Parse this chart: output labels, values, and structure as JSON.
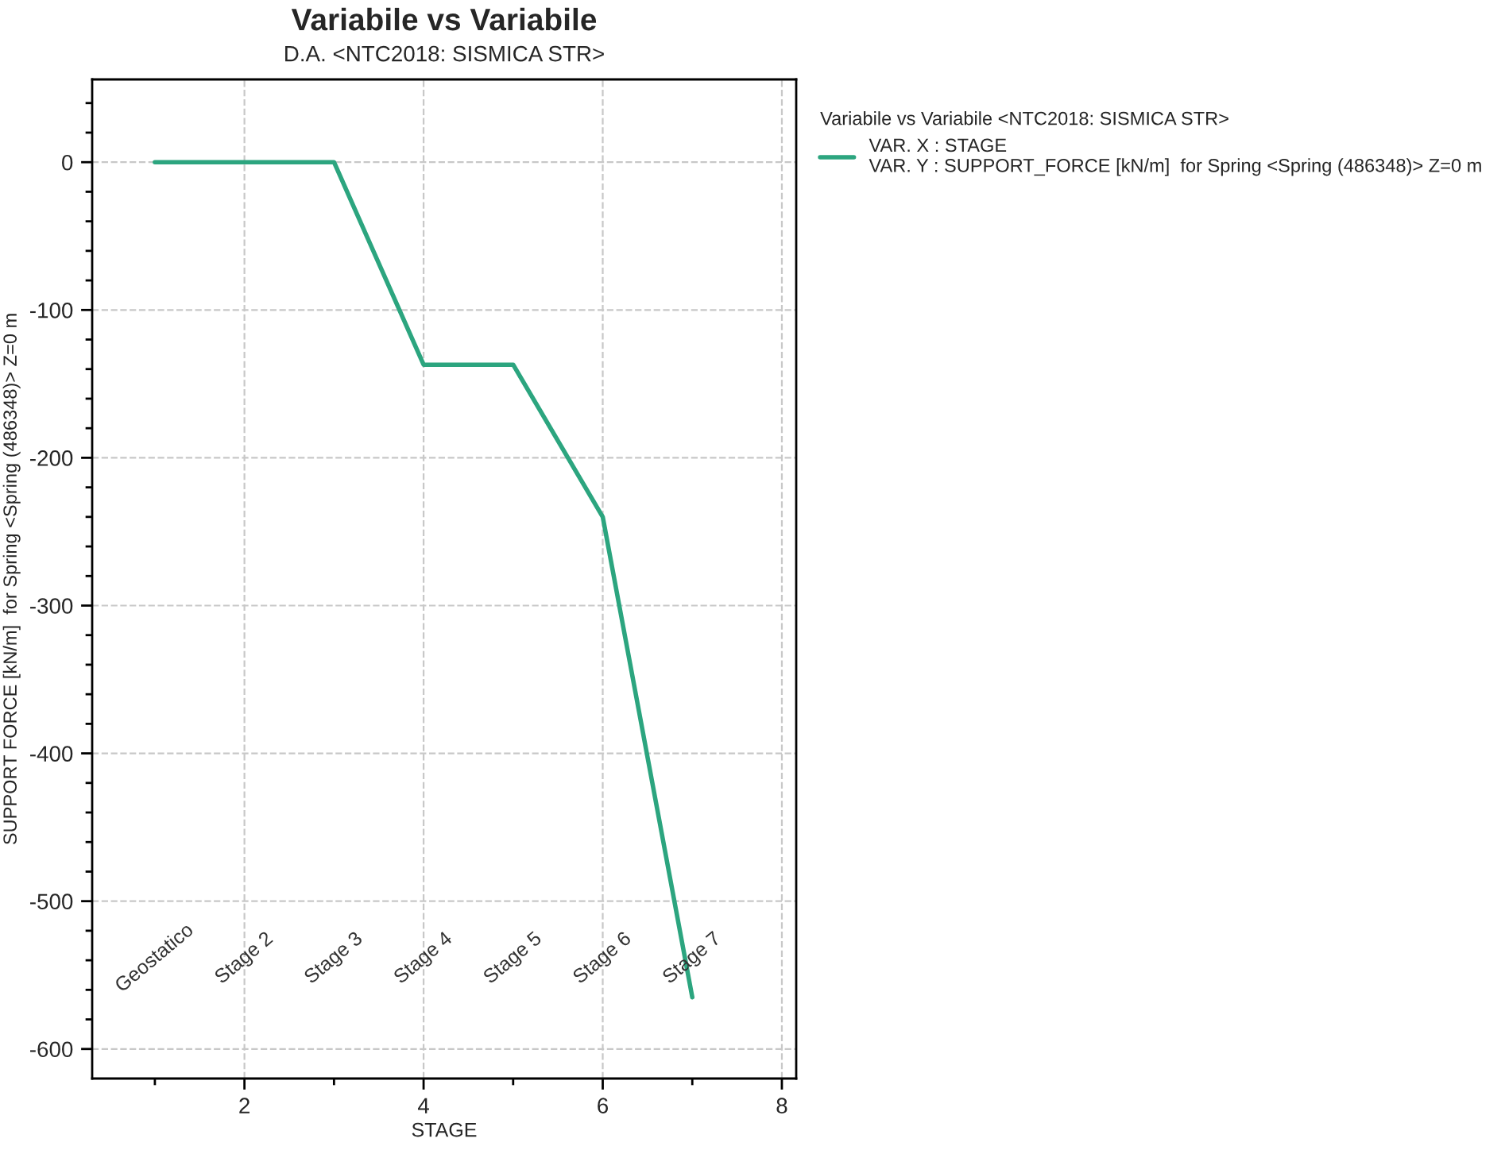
{
  "chart_data": {
    "type": "line",
    "title": "Variabile vs Variabile",
    "subtitle": "D.A. <NTC2018: SISMICA STR>",
    "xlabel": "STAGE",
    "ylabel": "SUPPORT FORCE [kN/m]  for Spring <Spring (486348)> Z=0 m",
    "legend_title": "Variabile vs Variabile <NTC2018: SISMICA STR>",
    "x": [
      1,
      2,
      3,
      4,
      5,
      6,
      7
    ],
    "series": [
      {
        "name": "VAR. X : STAGE\nVAR. Y : SUPPORT_FORCE [kN/m]  for Spring <Spring (486348)> Z=0 m",
        "color": "#2ca57f",
        "values": [
          0,
          0,
          0,
          -137,
          -137,
          -240,
          -565
        ]
      }
    ],
    "annotations": [
      "Geostatico",
      "Stage 2",
      "Stage 3",
      "Stage 4",
      "Stage 5",
      "Stage 6",
      "Stage 7"
    ],
    "xlim": [
      0.3,
      8.16
    ],
    "ylim": [
      -620,
      56
    ],
    "xticks": [
      {
        "value": 1,
        "label": null
      },
      2,
      {
        "value": 3,
        "label": null
      },
      4,
      {
        "value": 5,
        "label": null
      },
      6,
      {
        "value": 7,
        "label": null
      },
      8
    ],
    "yticks": [
      -600,
      {
        "value": -580,
        "label": null
      },
      {
        "value": -560,
        "label": null
      },
      {
        "value": -540,
        "label": null
      },
      {
        "value": -520,
        "label": null
      },
      -500,
      {
        "value": -480,
        "label": null
      },
      {
        "value": -460,
        "label": null
      },
      {
        "value": -440,
        "label": null
      },
      {
        "value": -420,
        "label": null
      },
      -400,
      {
        "value": -380,
        "label": null
      },
      {
        "value": -360,
        "label": null
      },
      {
        "value": -340,
        "label": null
      },
      {
        "value": -320,
        "label": null
      },
      -300,
      {
        "value": -280,
        "label": null
      },
      {
        "value": -260,
        "label": null
      },
      {
        "value": -240,
        "label": null
      },
      {
        "value": -220,
        "label": null
      },
      -200,
      {
        "value": -180,
        "label": null
      },
      {
        "value": -160,
        "label": null
      },
      {
        "value": -140,
        "label": null
      },
      {
        "value": -120,
        "label": null
      },
      -100,
      {
        "value": -80,
        "label": null
      },
      {
        "value": -60,
        "label": null
      },
      {
        "value": -40,
        "label": null
      },
      {
        "value": -20,
        "label": null
      },
      0,
      {
        "value": 20,
        "label": null
      },
      {
        "value": 40,
        "label": null
      }
    ],
    "grid": true,
    "legend": "top right",
    "line_style": "solid",
    "marker": "none"
  }
}
